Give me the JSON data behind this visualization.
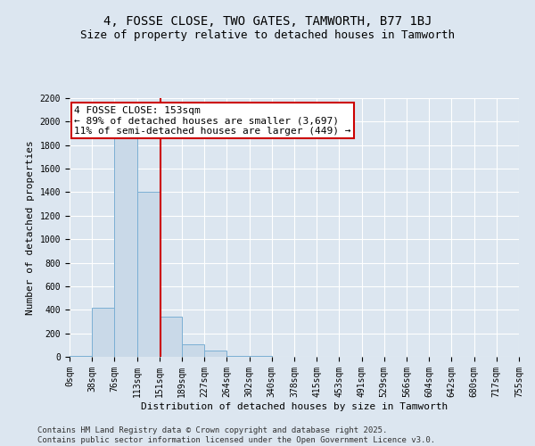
{
  "title": "4, FOSSE CLOSE, TWO GATES, TAMWORTH, B77 1BJ",
  "subtitle": "Size of property relative to detached houses in Tamworth",
  "xlabel": "Distribution of detached houses by size in Tamworth",
  "ylabel": "Number of detached properties",
  "bin_labels": [
    "0sqm",
    "38sqm",
    "76sqm",
    "113sqm",
    "151sqm",
    "189sqm",
    "227sqm",
    "264sqm",
    "302sqm",
    "340sqm",
    "378sqm",
    "415sqm",
    "453sqm",
    "491sqm",
    "529sqm",
    "566sqm",
    "604sqm",
    "642sqm",
    "680sqm",
    "717sqm",
    "755sqm"
  ],
  "bar_values": [
    5,
    420,
    1950,
    1400,
    340,
    105,
    50,
    10,
    5,
    2,
    1,
    0,
    0,
    0,
    0,
    0,
    0,
    0,
    0,
    0,
    0
  ],
  "bar_color": "#c9d9e8",
  "bar_edgecolor": "#7bafd4",
  "annotation_text": "4 FOSSE CLOSE: 153sqm\n← 89% of detached houses are smaller (3,697)\n11% of semi-detached houses are larger (449) →",
  "annotation_box_facecolor": "#ffffff",
  "annotation_box_edgecolor": "#cc0000",
  "vline_color": "#cc0000",
  "ylim": [
    0,
    2200
  ],
  "yticks": [
    0,
    200,
    400,
    600,
    800,
    1000,
    1200,
    1400,
    1600,
    1800,
    2000,
    2200
  ],
  "background_color": "#dce6f0",
  "grid_color": "#ffffff",
  "footer_line1": "Contains HM Land Registry data © Crown copyright and database right 2025.",
  "footer_line2": "Contains public sector information licensed under the Open Government Licence v3.0.",
  "title_fontsize": 10,
  "subtitle_fontsize": 9,
  "axis_label_fontsize": 8,
  "tick_fontsize": 7,
  "annotation_fontsize": 8,
  "footer_fontsize": 6.5,
  "vline_x": 4.053
}
